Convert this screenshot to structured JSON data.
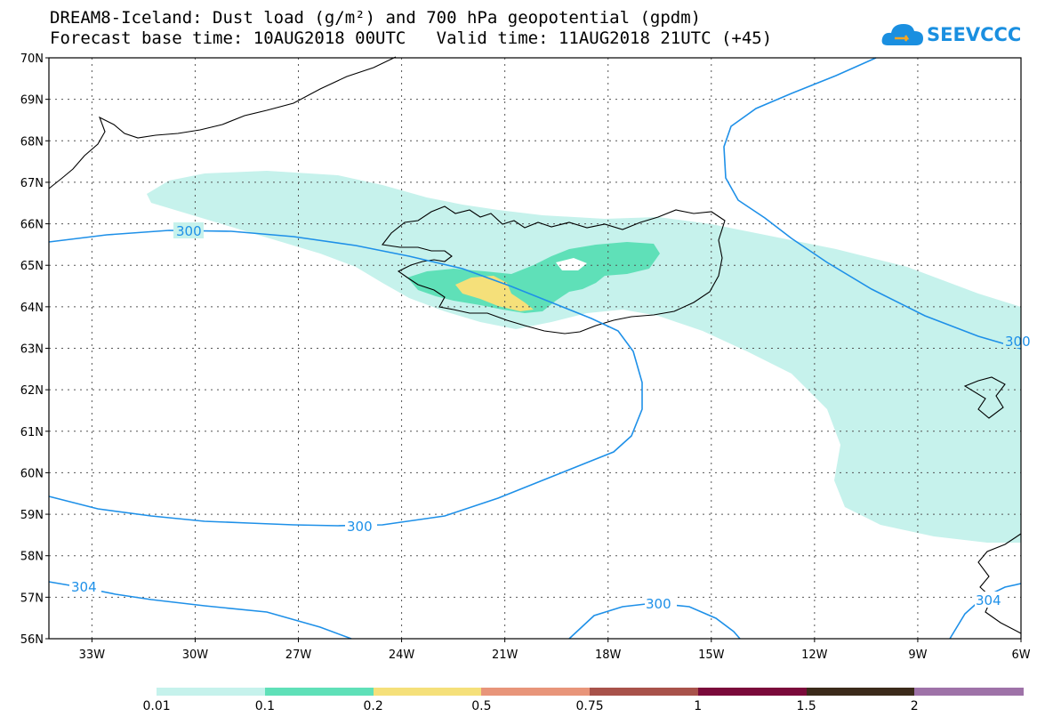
{
  "title": {
    "line1": "DREAM8-Iceland: Dust load (g/m²) and 700 hPa geopotential (gpdm)",
    "line2": "Forecast base time: 10AUG2018 00UTC   Valid time: 11AUG2018 21UTC (+45)"
  },
  "logo": {
    "text": "SEEVCCC",
    "icon": "cloud-icon"
  },
  "map": {
    "lat_labels": [
      "70N",
      "69N",
      "68N",
      "67N",
      "66N",
      "65N",
      "64N",
      "63N",
      "62N",
      "61N",
      "60N",
      "59N",
      "58N",
      "57N",
      "56N"
    ],
    "lon_labels": [
      "33W",
      "30W",
      "27W",
      "24W",
      "21W",
      "18W",
      "15W",
      "12W",
      "9W",
      "6W"
    ],
    "grid": true,
    "contour_labels": [
      "300",
      "300",
      "300",
      "300",
      "304",
      "304"
    ]
  },
  "colorbar": {
    "labels": [
      "0.01",
      "0.1",
      "0.2",
      "0.5",
      "0.75",
      "1",
      "1.5",
      "2"
    ],
    "colors": [
      "#c6f2ec",
      "#5fe0b8",
      "#f5e07a",
      "#e8957a",
      "#a8524a",
      "#7a0a3a",
      "#3b2a1a",
      "#9e72a8"
    ]
  },
  "colors": {
    "contour": "#1e90e8",
    "land_outline": "#000000"
  }
}
